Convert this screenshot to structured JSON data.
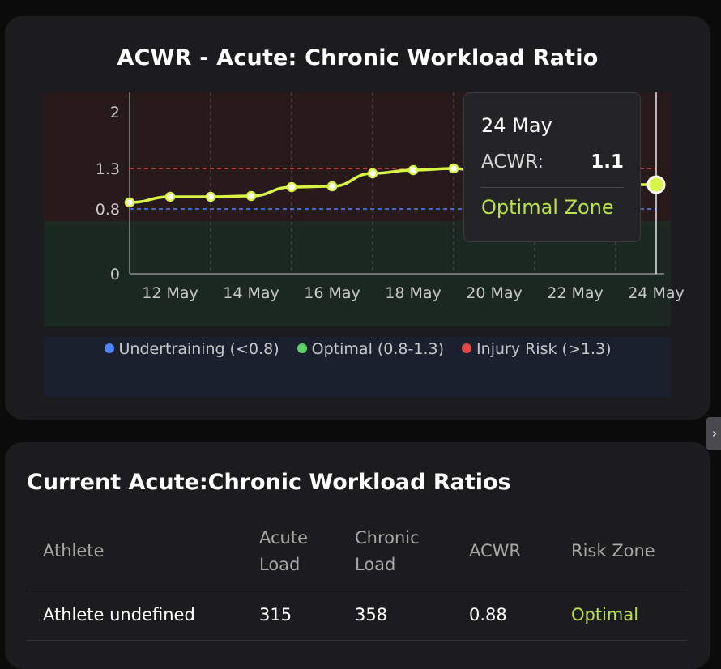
{
  "chart_card": {
    "title": "ACWR - Acute: Chronic Workload Ratio"
  },
  "chart_data": {
    "type": "line",
    "title": "ACWR - Acute: Chronic Workload Ratio",
    "xlabel": "",
    "ylabel": "",
    "y_ticks": [
      "0",
      "0.8",
      "1.3",
      "2"
    ],
    "x_ticks": [
      "12 May",
      "14 May",
      "16 May",
      "18 May",
      "20 May",
      "22 May",
      "24 May"
    ],
    "thresholds": {
      "low": 0.8,
      "high": 1.3
    },
    "x": [
      "11 May",
      "12 May",
      "13 May",
      "14 May",
      "15 May",
      "16 May",
      "17 May",
      "18 May",
      "19 May",
      "20 May",
      "21 May",
      "22 May",
      "23 May",
      "24 May"
    ],
    "series": [
      {
        "values": [
          0.88,
          0.95,
          0.95,
          0.96,
          1.07,
          1.08,
          1.24,
          1.28,
          1.3,
          1.2,
          1.12,
          1.1,
          1.1,
          1.1
        ],
        "color": "#d8f546"
      }
    ],
    "ylim": [
      0,
      2.1
    ],
    "grid": true,
    "legend_position": "bottom",
    "zone_colors": {
      "injury": "#2a1a1b",
      "optimal": "#1c2a21",
      "under": "#1b2233"
    }
  },
  "tooltip": {
    "date": "24 May",
    "label": "ACWR:",
    "value": "1.1",
    "zone": "Optimal Zone"
  },
  "legend": [
    {
      "label": "Undertraining (<0.8)",
      "color": "#4f86f7"
    },
    {
      "label": "Optimal (0.8-1.3)",
      "color": "#5fd16b"
    },
    {
      "label": "Injury Risk (>1.3)",
      "color": "#e04a4a"
    }
  ],
  "table": {
    "title": "Current Acute:Chronic Workload Ratios",
    "headers": {
      "athlete": "Athlete",
      "acute_1": "Acute",
      "acute_2": "Load",
      "chronic_1": "Chronic",
      "chronic_2": "Load",
      "acwr": "ACWR",
      "risk": "Risk Zone"
    },
    "rows": [
      {
        "athlete": "Athlete undefined",
        "acute": "315",
        "chronic": "358",
        "acwr": "0.88",
        "risk": "Optimal"
      }
    ]
  },
  "colors": {
    "accent": "#d8f546",
    "optimal_text": "#b8e04a"
  },
  "side_handle": {
    "icon": "chevron-right-icon",
    "glyph": "›"
  }
}
